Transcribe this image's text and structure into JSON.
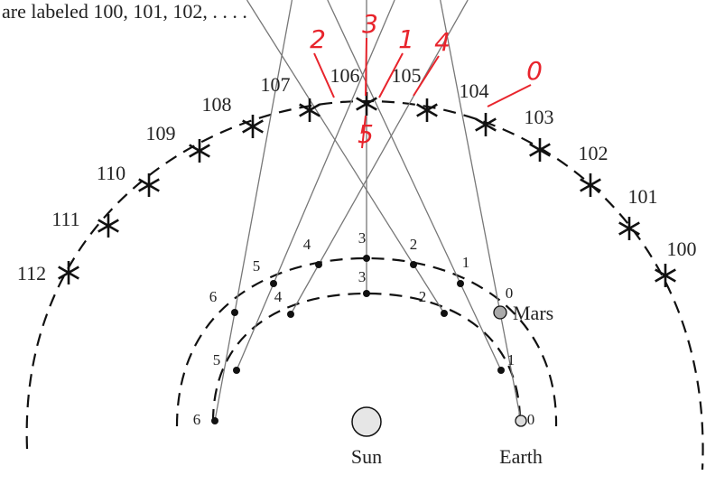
{
  "intro": "are labeled 100, 101, 102, . . . .",
  "stars": [
    "100",
    "101",
    "102",
    "103",
    "104",
    "105",
    "106",
    "107",
    "108",
    "109",
    "110",
    "111",
    "112"
  ],
  "earth_positions": [
    "0",
    "1",
    "2",
    "3",
    "4",
    "5",
    "6"
  ],
  "mars_positions": [
    "0",
    "1",
    "2",
    "3",
    "4",
    "5",
    "6"
  ],
  "labels": {
    "mars": "Mars",
    "sun": "Sun",
    "earth": "Earth"
  },
  "annotations": [
    "0",
    "1",
    "2",
    "3",
    "4",
    "5"
  ]
}
